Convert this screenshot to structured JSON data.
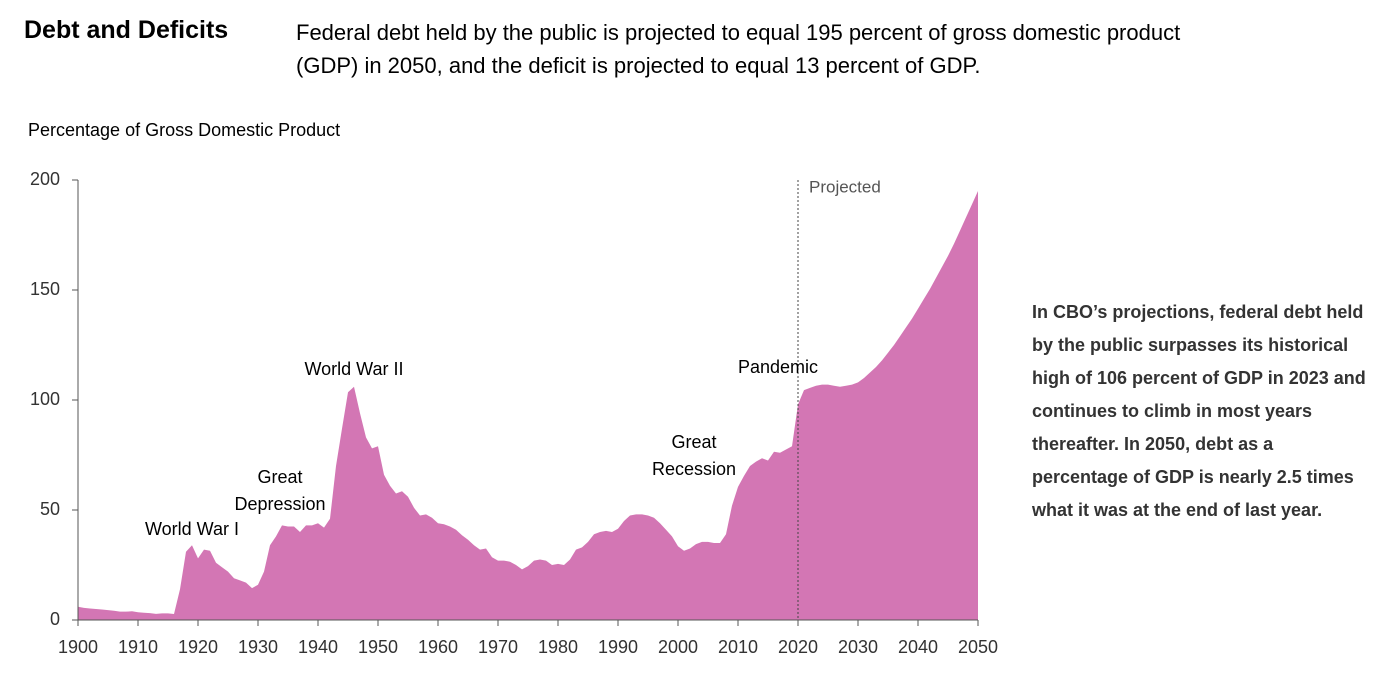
{
  "chart_data": {
    "type": "area",
    "title": "Debt and Deficits",
    "subtitle": "Federal debt held by the public is projected to equal 195 percent of gross domestic product (GDP) in 2050, and the deficit is projected to equal 13 percent of GDP.",
    "y_label": "Percentage of Gross Domestic Product",
    "note": "In CBO’s projections, federal debt held by the public surpasses its historical high of 106 percent of GDP in 2023 and continues to climb in most years thereafter. In 2050, debt as a percentage of GDP is nearly 2.5 times what it was at the end of last year.",
    "color": "#d376b4",
    "projection_start": 2020,
    "projection_label": "Projected",
    "annotations": [
      [
        "World War I"
      ],
      [
        "Great",
        "Depression"
      ],
      [
        "World War II"
      ],
      [
        "Great",
        "Recession"
      ],
      [
        "Pandemic"
      ]
    ],
    "x": [
      1900,
      1901,
      1902,
      1903,
      1904,
      1905,
      1906,
      1907,
      1908,
      1909,
      1910,
      1911,
      1912,
      1913,
      1914,
      1915,
      1916,
      1917,
      1918,
      1919,
      1920,
      1921,
      1922,
      1923,
      1924,
      1925,
      1926,
      1927,
      1928,
      1929,
      1930,
      1931,
      1932,
      1933,
      1934,
      1935,
      1936,
      1937,
      1938,
      1939,
      1940,
      1941,
      1942,
      1943,
      1944,
      1945,
      1946,
      1947,
      1948,
      1949,
      1950,
      1951,
      1952,
      1953,
      1954,
      1955,
      1956,
      1957,
      1958,
      1959,
      1960,
      1961,
      1962,
      1963,
      1964,
      1965,
      1966,
      1967,
      1968,
      1969,
      1970,
      1971,
      1972,
      1973,
      1974,
      1975,
      1976,
      1977,
      1978,
      1979,
      1980,
      1981,
      1982,
      1983,
      1984,
      1985,
      1986,
      1987,
      1988,
      1989,
      1990,
      1991,
      1992,
      1993,
      1994,
      1995,
      1996,
      1997,
      1998,
      1999,
      2000,
      2001,
      2002,
      2003,
      2004,
      2005,
      2006,
      2007,
      2008,
      2009,
      2010,
      2011,
      2012,
      2013,
      2014,
      2015,
      2016,
      2017,
      2018,
      2019,
      2020,
      2021,
      2022,
      2023,
      2024,
      2025,
      2026,
      2027,
      2028,
      2029,
      2030,
      2031,
      2032,
      2033,
      2034,
      2035,
      2036,
      2037,
      2038,
      2039,
      2040,
      2041,
      2042,
      2043,
      2044,
      2045,
      2046,
      2047,
      2048,
      2049,
      2050
    ],
    "values": [
      6,
      5.5,
      5.2,
      5,
      4.8,
      4.5,
      4.2,
      3.8,
      3.8,
      4,
      3.5,
      3.3,
      3.1,
      2.8,
      3,
      3,
      2.7,
      14,
      31,
      34,
      28,
      32,
      31.5,
      26,
      24,
      22,
      19,
      18,
      17,
      14.5,
      16,
      22,
      34,
      38,
      43,
      42.5,
      42.5,
      40,
      43,
      43,
      44,
      42,
      46,
      70,
      87,
      103.5,
      106,
      94,
      83,
      78,
      79,
      66,
      61,
      57.5,
      58.5,
      56,
      51,
      47.5,
      48,
      46.5,
      44,
      43.5,
      42.5,
      41,
      38.5,
      36.5,
      34,
      32,
      32.5,
      28.5,
      27,
      27,
      26.5,
      25,
      23,
      24.5,
      27,
      27.5,
      27,
      25,
      25.5,
      25,
      27.5,
      32,
      33,
      35.5,
      39,
      40,
      40.5,
      40,
      41.5,
      45,
      47.5,
      48,
      48,
      47.5,
      46.5,
      44,
      41,
      38,
      33.5,
      31.5,
      32.5,
      34.5,
      35.5,
      35.5,
      35,
      35,
      39,
      52,
      60.5,
      65.5,
      70,
      72,
      73.5,
      72.5,
      76.5,
      76,
      77.5,
      79,
      98,
      104.5,
      105.5,
      106.5,
      107,
      107,
      106.5,
      106,
      106.5,
      107,
      108,
      110,
      112.5,
      115,
      118,
      121.5,
      125,
      129,
      133,
      137,
      141.5,
      146,
      150.5,
      155.5,
      160.5,
      165.5,
      171,
      177,
      183,
      189,
      195
    ],
    "xlim": [
      1900,
      2050
    ],
    "xticks": [
      1900,
      1910,
      1920,
      1930,
      1940,
      1950,
      1960,
      1970,
      1980,
      1990,
      2000,
      2010,
      2020,
      2030,
      2040,
      2050
    ],
    "ylim": [
      0,
      200
    ],
    "yticks": [
      0,
      50,
      100,
      150,
      200
    ]
  }
}
